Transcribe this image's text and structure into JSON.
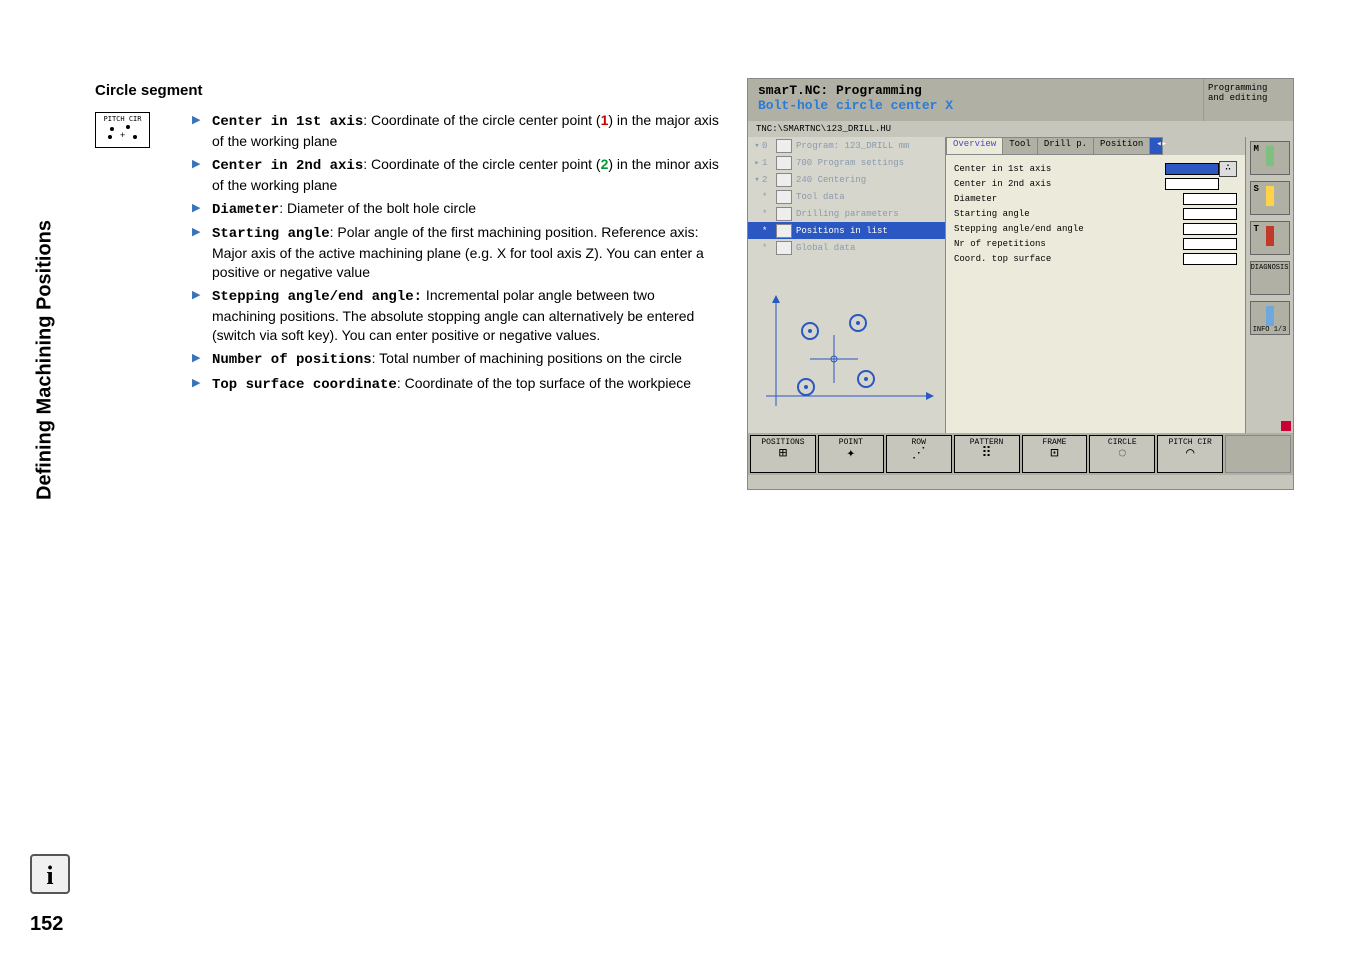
{
  "page": {
    "vertical_title": "Defining Machining Positions",
    "section_heading": "Circle segment",
    "page_number": "152"
  },
  "softkey_ref": {
    "label": "PITCH CIR"
  },
  "params": [
    {
      "name": "Center in 1st axis",
      "desc": ": Coordinate of the circle center point (",
      "ref": "1",
      "ref_color": "#cc0000",
      "desc2": ") in the major axis of the working plane"
    },
    {
      "name": "Center in 2nd axis",
      "desc": ": Coordinate of the circle center point (",
      "ref": "2",
      "ref_color": "#009933",
      "desc2": ") in the minor axis of the working plane"
    },
    {
      "name": "Diameter",
      "desc": ": Diameter of the bolt hole circle",
      "ref": "",
      "desc2": ""
    },
    {
      "name": "Starting angle",
      "desc": ": Polar angle of the first machining position. Reference axis: Major axis of the active machining plane (e.g. X for tool axis Z). You can enter a positive or negative value",
      "ref": "",
      "desc2": ""
    },
    {
      "name": "Stepping angle/end angle:",
      "desc": " Incremental polar angle between two machining positions. The absolute stopping angle can alternatively be entered (switch via soft key). You can enter positive or negative values.",
      "ref": "",
      "desc2": ""
    },
    {
      "name": "Number of positions",
      "desc": ": Total number of machining positions on the circle",
      "ref": "",
      "desc2": ""
    },
    {
      "name": "Top surface coordinate",
      "desc": ": Coordinate of the top surface of the workpiece",
      "ref": "",
      "desc2": ""
    }
  ],
  "screenshot": {
    "title_line1": "smarT.NC: Programming",
    "title_line2": "Bolt-hole circle center X",
    "header_right_line1": "Programming",
    "header_right_line2": "and editing",
    "path": "TNC:\\SMARTNC\\123_DRILL.HU",
    "tree": [
      {
        "tw": "▾",
        "num": "0",
        "label": "Program: 123_DRILL mm",
        "sel": false
      },
      {
        "tw": "▸",
        "num": "1",
        "label": "700 Program settings",
        "sel": false
      },
      {
        "tw": "▾",
        "num": "2",
        "label": "240 Centering",
        "sel": false
      },
      {
        "tw": "",
        "num": "*",
        "label": "Tool data",
        "sel": false
      },
      {
        "tw": "",
        "num": "*",
        "label": "Drilling parameters",
        "sel": false
      },
      {
        "tw": "",
        "num": "*",
        "label": "Positions in list",
        "sel": true
      },
      {
        "tw": "",
        "num": "*",
        "label": "Global data",
        "sel": false
      }
    ],
    "tabs": [
      {
        "label": "Overview",
        "active": true
      },
      {
        "label": "Tool",
        "active": false
      },
      {
        "label": "Drill p.",
        "active": false
      },
      {
        "label": "Position",
        "active": false
      }
    ],
    "form_rows": [
      {
        "label": "Center in 1st axis",
        "highlight": true
      },
      {
        "label": "Center in 2nd axis",
        "highlight": false
      },
      {
        "label": "Diameter",
        "highlight": false
      },
      {
        "label": "Starting angle",
        "highlight": false
      },
      {
        "label": "Stepping angle/end angle",
        "highlight": false
      },
      {
        "label": "Nr of repetitions",
        "highlight": false
      },
      {
        "label": "Coord. top surface",
        "highlight": false
      }
    ],
    "right_buttons": [
      {
        "letter": "M",
        "color": "#7fbf7f"
      },
      {
        "letter": "S",
        "color": "#ffd24a"
      },
      {
        "letter": "T",
        "color": "#c0392b"
      },
      {
        "letter": "",
        "label": "DIAGNOSIS",
        "color": ""
      },
      {
        "letter": "",
        "label": "INFO 1/3",
        "color": "#6fa8dc"
      }
    ],
    "softkeys": [
      {
        "label": "POSITIONS",
        "glyph": "⊞"
      },
      {
        "label": "POINT",
        "glyph": "✦"
      },
      {
        "label": "ROW",
        "glyph": "⋰"
      },
      {
        "label": "PATTERN",
        "glyph": "⠿"
      },
      {
        "label": "FRAME",
        "glyph": "⊡"
      },
      {
        "label": "CIRCLE",
        "glyph": "◌"
      },
      {
        "label": "PITCH CIR",
        "glyph": "◠"
      }
    ],
    "diagram": {
      "axis_color": "#2b57c2",
      "node_color": "#2b57c2"
    }
  }
}
